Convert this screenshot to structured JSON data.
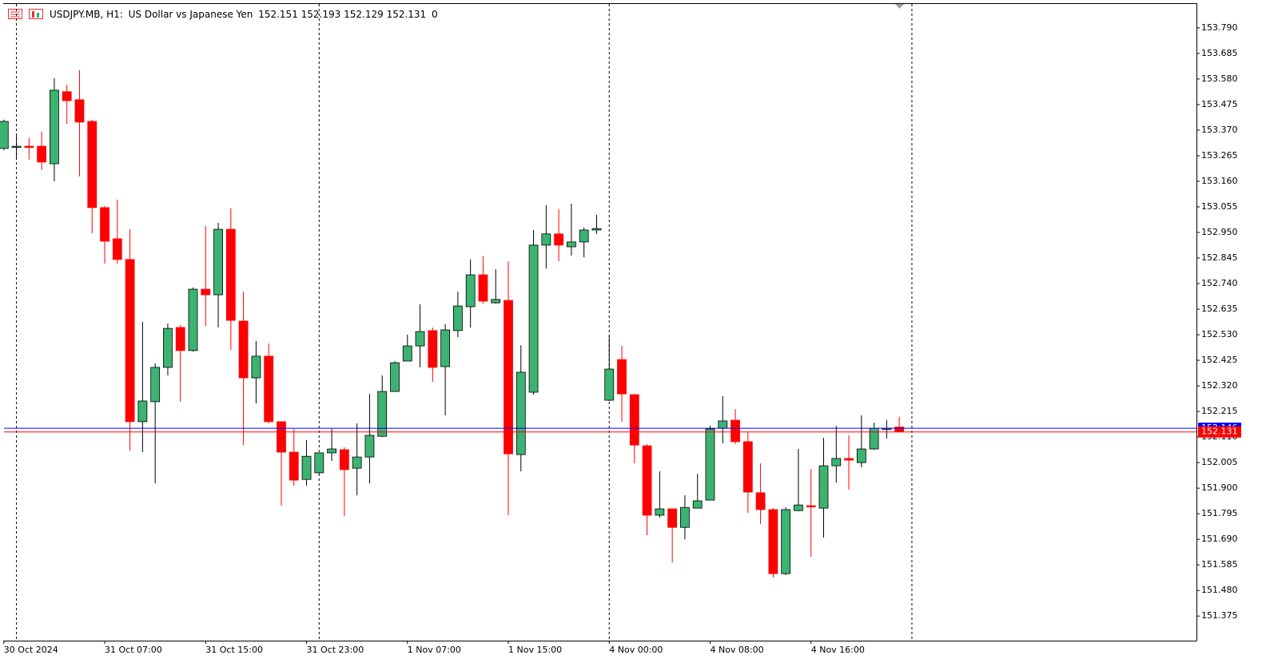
{
  "chart_data": {
    "type": "candlestick",
    "symbol": "USDJPY.MB, H1:",
    "description": "US Dollar vs Japanese Yen",
    "spread": 0,
    "categories": [
      "30 Oct 2024",
      null,
      null,
      null,
      null,
      null,
      null,
      null,
      "31 Oct 07:00",
      null,
      null,
      null,
      null,
      null,
      null,
      null,
      "31 Oct 15:00",
      null,
      null,
      null,
      null,
      null,
      null,
      null,
      "31 Oct 23:00",
      null,
      null,
      null,
      null,
      null,
      null,
      null,
      "1 Nov 07:00",
      null,
      null,
      null,
      null,
      null,
      null,
      null,
      "1 Nov 15:00",
      null,
      null,
      null,
      null,
      null,
      null,
      null,
      "4 Nov 00:00",
      null,
      null,
      null,
      null,
      null,
      null,
      null,
      "4 Nov 08:00",
      null,
      null,
      null,
      null,
      null,
      null,
      null,
      "4 Nov 16:00",
      null,
      null,
      null,
      null,
      null,
      null,
      null
    ],
    "open": [
      153.295,
      153.301,
      153.304,
      153.304,
      153.232,
      153.528,
      153.495,
      153.406,
      153.052,
      152.924,
      152.839,
      152.173,
      152.255,
      152.396,
      152.56,
      152.465,
      152.717,
      152.694,
      152.963,
      152.586,
      152.353,
      152.442,
      152.173,
      152.048,
      151.936,
      151.963,
      152.045,
      152.058,
      151.982,
      152.028,
      152.113,
      152.297,
      152.422,
      152.484,
      152.547,
      152.399,
      152.547,
      152.645,
      152.776,
      152.661,
      152.671,
      152.038,
      152.294,
      152.898,
      152.944,
      152.891,
      152.911,
      152.96,
      152.261,
      152.428,
      152.284,
      152.074,
      151.789,
      151.815,
      151.739,
      151.818,
      151.851,
      152.146,
      152.179,
      152.091,
      151.881,
      151.812,
      151.549,
      151.808,
      151.828,
      151.818,
      151.992,
      152.022,
      152.005,
      152.061,
      152.143,
      152.151
    ],
    "high": [
      153.413,
      153.347,
      153.337,
      153.364,
      153.583,
      153.557,
      153.616,
      153.413,
      153.058,
      153.085,
      152.963,
      152.583,
      152.412,
      152.576,
      152.57,
      152.724,
      152.976,
      152.989,
      153.049,
      152.707,
      152.504,
      152.494,
      152.173,
      152.143,
      152.097,
      152.045,
      152.143,
      152.068,
      152.166,
      152.287,
      152.363,
      152.422,
      152.53,
      152.655,
      152.56,
      152.573,
      152.707,
      152.839,
      152.852,
      152.799,
      152.832,
      152.487,
      152.96,
      153.062,
      153.045,
      153.068,
      152.97,
      153.022,
      152.527,
      152.484,
      152.287,
      152.081,
      151.969,
      151.815,
      151.871,
      151.959,
      152.156,
      152.278,
      152.225,
      152.133,
      152.002,
      151.818,
      151.821,
      152.061,
      151.979,
      152.107,
      152.156,
      152.117,
      152.199,
      152.169,
      152.179,
      152.193
    ],
    "low": [
      153.288,
      153.249,
      153.249,
      153.206,
      153.16,
      153.396,
      153.18,
      152.947,
      152.822,
      152.822,
      152.054,
      152.048,
      151.92,
      152.363,
      152.255,
      152.461,
      152.566,
      152.56,
      152.468,
      152.077,
      152.248,
      152.166,
      151.828,
      151.91,
      151.91,
      151.959,
      152.012,
      151.785,
      151.871,
      151.92,
      152.11,
      152.297,
      152.422,
      152.396,
      152.337,
      152.199,
      152.52,
      152.56,
      152.658,
      152.658,
      151.789,
      151.969,
      152.284,
      152.802,
      152.832,
      152.855,
      152.848,
      152.944,
      152.258,
      152.173,
      152.002,
      151.707,
      151.779,
      151.595,
      151.69,
      151.818,
      151.851,
      152.084,
      152.081,
      151.799,
      151.753,
      151.533,
      151.543,
      151.805,
      151.618,
      151.697,
      151.923,
      151.894,
      151.986,
      152.058,
      152.104,
      152.129
    ],
    "close": [
      153.406,
      153.304,
      153.301,
      153.239,
      153.534,
      153.491,
      153.403,
      153.052,
      152.914,
      152.839,
      152.173,
      152.258,
      152.396,
      152.556,
      152.465,
      152.717,
      152.694,
      152.963,
      152.589,
      152.353,
      152.442,
      152.173,
      152.048,
      151.933,
      152.031,
      152.045,
      152.061,
      151.976,
      152.028,
      152.117,
      152.297,
      152.415,
      152.484,
      152.543,
      152.396,
      152.55,
      152.648,
      152.776,
      152.668,
      152.675,
      152.041,
      152.376,
      152.898,
      152.944,
      152.898,
      152.911,
      152.96,
      152.966,
      152.389,
      152.287,
      152.077,
      151.789,
      151.815,
      151.739,
      151.821,
      151.848,
      152.143,
      152.176,
      152.091,
      151.884,
      151.812,
      151.549,
      151.812,
      151.831,
      151.825,
      151.992,
      152.022,
      152.015,
      152.061,
      152.146,
      152.146,
      152.131
    ],
    "up_color": "#3cb371",
    "down_color": "#ff0000",
    "ask": 152.146,
    "ask_color": "#0000ff",
    "ylim": [
      151.274,
      153.888
    ],
    "yticks": [
      {
        "value": 153.79,
        "label": "153.790"
      },
      153.685,
      {
        "value": 153.58,
        "label": "153.580"
      },
      153.475,
      {
        "value": 153.37,
        "label": "153.370"
      },
      153.265,
      {
        "value": 153.16,
        "label": "153.160"
      },
      153.055,
      {
        "value": 152.95,
        "label": "152.950"
      },
      152.845,
      {
        "value": 152.74,
        "label": "152.740"
      },
      152.635,
      {
        "value": 152.53,
        "label": "152.530"
      },
      152.425,
      {
        "value": 152.32,
        "label": "152.320"
      },
      152.215,
      {
        "value": 152.11,
        "label": "152.110"
      },
      152.005,
      {
        "value": 151.9,
        "label": "151.900"
      },
      151.795,
      {
        "value": 151.69,
        "label": "151.690"
      },
      151.585,
      {
        "value": 151.48,
        "label": "151.480"
      },
      151.375
    ],
    "grid": false
  }
}
